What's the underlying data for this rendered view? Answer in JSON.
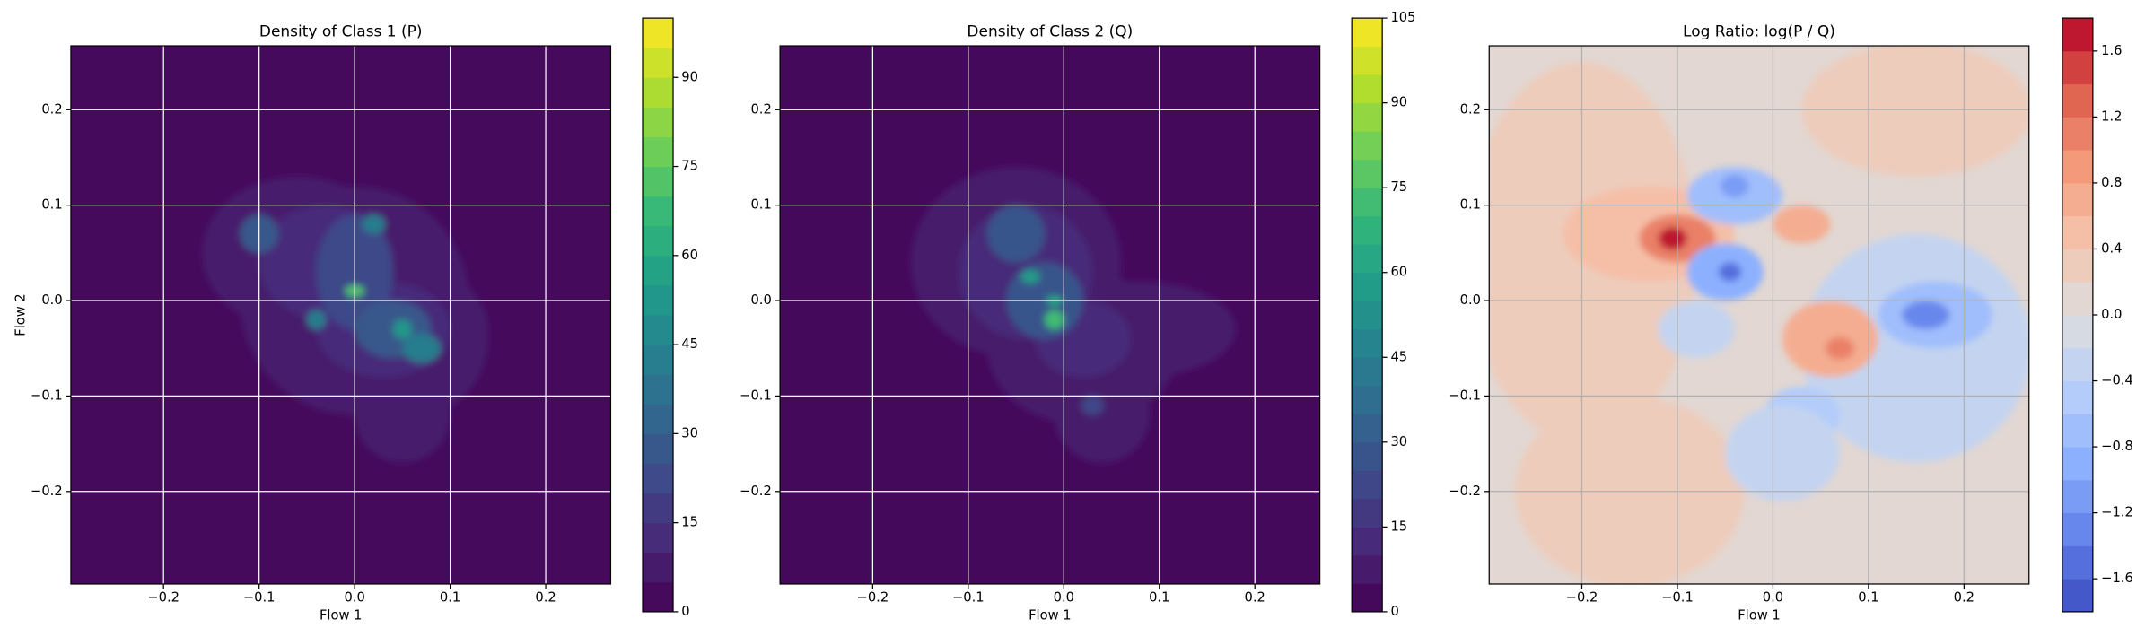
{
  "chart_data": [
    {
      "type": "contour",
      "title": "Density of Class 1 (P)",
      "x_label": "Flow 1",
      "y_label": "Flow 2",
      "xlim": [
        -0.297,
        0.268
      ],
      "ylim": [
        -0.297,
        0.267
      ],
      "xticks": [
        {
          "value": -0.2,
          "label": "−0.2"
        },
        {
          "value": -0.1,
          "label": "−0.1"
        },
        {
          "value": 0,
          "label": "0.0"
        },
        0.1,
        0.2
      ],
      "yticks": [
        {
          "value": -0.2,
          "label": "−0.2"
        },
        {
          "value": -0.1,
          "label": "−0.1"
        },
        {
          "value": 0,
          "label": "0.0"
        },
        0.1,
        0.2
      ],
      "grid": true,
      "grid_color": "#ffffff",
      "colormap": "viridis",
      "clim": [
        0,
        100
      ],
      "level_step": 5,
      "colorbar_ticks": [
        0,
        15,
        30,
        45,
        60,
        75,
        90
      ],
      "background": 0,
      "regions": {
        "x": [
          -0.06,
          0.04,
          0.0,
          0.05,
          0.09,
          -0.03,
          0.03,
          -0.1,
          0.0,
          0.04,
          0.0,
          0.05,
          -0.04,
          0.02,
          0.07
        ],
        "y": [
          0.05,
          -0.04,
          0.0,
          -0.12,
          -0.03,
          0.04,
          -0.03,
          0.07,
          0.03,
          -0.03,
          0.01,
          -0.03,
          -0.02,
          0.08,
          -0.05
        ],
        "width": [
          0.1,
          0.1,
          0.12,
          0.05,
          0.05,
          0.07,
          0.07,
          0.02,
          0.04,
          0.04,
          0.01,
          0.01,
          0.01,
          0.012,
          0.02
        ],
        "height": [
          0.08,
          0.09,
          0.12,
          0.05,
          0.05,
          0.06,
          0.05,
          0.02,
          0.06,
          0.03,
          0.006,
          0.01,
          0.01,
          0.01,
          0.015
        ],
        "values": [
          5,
          5,
          5,
          5,
          5,
          12,
          12,
          28,
          22,
          25,
          70,
          50,
          40,
          40,
          40
        ]
      }
    },
    {
      "type": "contour",
      "title": "Density of Class 2 (Q)",
      "x_label": "Flow 1",
      "xlim": [
        -0.297,
        0.268
      ],
      "ylim": [
        -0.297,
        0.267
      ],
      "xticks": [
        {
          "value": -0.2,
          "label": "−0.2"
        },
        {
          "value": -0.1,
          "label": "−0.1"
        },
        {
          "value": 0,
          "label": "0.0"
        },
        0.1,
        0.2
      ],
      "yticks": [
        {
          "value": -0.2,
          "label": "−0.2"
        },
        {
          "value": -0.1,
          "label": "−0.1"
        },
        {
          "value": 0,
          "label": "0.0"
        },
        0.1,
        0.2
      ],
      "grid": true,
      "grid_color": "#ffffff",
      "colormap": "viridis",
      "clim": [
        0,
        105
      ],
      "level_step": 5,
      "colorbar_ticks": [
        0,
        15,
        30,
        45,
        60,
        75,
        90,
        105
      ],
      "background": 0,
      "regions": {
        "x": [
          -0.05,
          0.02,
          0.04,
          0.08,
          -0.04,
          0.02,
          -0.05,
          -0.02,
          -0.035,
          -0.01,
          -0.01,
          0.03
        ],
        "y": [
          0.04,
          -0.05,
          -0.12,
          -0.03,
          0.03,
          -0.04,
          0.07,
          0.0,
          0.025,
          -0.02,
          0.0,
          -0.11
        ],
        "width": [
          0.11,
          0.1,
          0.05,
          0.1,
          0.07,
          0.05,
          0.03,
          0.04,
          0.01,
          0.01,
          0.008,
          0.012
        ],
        "height": [
          0.1,
          0.08,
          0.05,
          0.05,
          0.07,
          0.04,
          0.03,
          0.04,
          0.007,
          0.01,
          0.005,
          0.01
        ],
        "values": [
          5,
          5,
          5,
          5,
          12,
          12,
          25,
          28,
          55,
          70,
          60,
          20
        ]
      }
    },
    {
      "type": "contour",
      "title": "Log Ratio: log(P / Q)",
      "x_label": "Flow 1",
      "xlim": [
        -0.297,
        0.268
      ],
      "ylim": [
        -0.297,
        0.267
      ],
      "xticks": [
        {
          "value": -0.2,
          "label": "−0.2"
        },
        {
          "value": -0.1,
          "label": "−0.1"
        },
        {
          "value": 0,
          "label": "0.0"
        },
        0.1,
        0.2
      ],
      "yticks": [
        {
          "value": -0.2,
          "label": "−0.2"
        },
        {
          "value": -0.1,
          "label": "−0.1"
        },
        {
          "value": 0,
          "label": "0.0"
        },
        0.1,
        0.2
      ],
      "grid": true,
      "grid_color": "#b0b0b0",
      "colormap": "coolwarm",
      "clim": [
        -1.8,
        1.8
      ],
      "level_step": 0.2,
      "colorbar_ticks": [
        {
          "value": -1.6,
          "label": "−1.6"
        },
        {
          "value": -1.2,
          "label": "−1.2"
        },
        {
          "value": -0.8,
          "label": "−0.8"
        },
        {
          "value": -0.4,
          "label": "−0.4"
        },
        {
          "value": 0,
          "label": "0.0"
        },
        0.4,
        0.8,
        1.2,
        1.6
      ],
      "background": 0,
      "regions": {
        "x": [
          -0.2,
          -0.15,
          0.15,
          0.15,
          -0.13,
          -0.1,
          -0.105,
          0.17,
          0.16,
          -0.04,
          -0.04,
          -0.05,
          -0.045,
          0.06,
          0.07,
          0.03,
          0.03,
          -0.08,
          0.01
        ],
        "y": [
          0.05,
          -0.2,
          0.2,
          -0.05,
          0.07,
          0.065,
          0.065,
          -0.015,
          -0.015,
          0.11,
          0.12,
          0.03,
          0.03,
          -0.04,
          -0.05,
          0.08,
          -0.12,
          -0.03,
          -0.16
        ],
        "width": [
          0.12,
          0.12,
          0.12,
          0.12,
          0.09,
          0.04,
          0.015,
          0.06,
          0.025,
          0.05,
          0.015,
          0.04,
          0.012,
          0.05,
          0.015,
          0.03,
          0.04,
          0.04,
          0.06
        ],
        "height": [
          0.2,
          0.1,
          0.07,
          0.12,
          0.05,
          0.025,
          0.012,
          0.035,
          0.015,
          0.03,
          0.012,
          0.03,
          0.01,
          0.04,
          0.012,
          0.02,
          0.03,
          0.03,
          0.05
        ],
        "values": [
          0.3,
          0.3,
          0.3,
          -0.3,
          0.5,
          1.0,
          1.7,
          -0.7,
          -1.3,
          -0.7,
          -1.1,
          -0.9,
          -1.5,
          0.7,
          1.1,
          0.7,
          -0.6,
          -0.4,
          -0.3
        ]
      }
    }
  ]
}
